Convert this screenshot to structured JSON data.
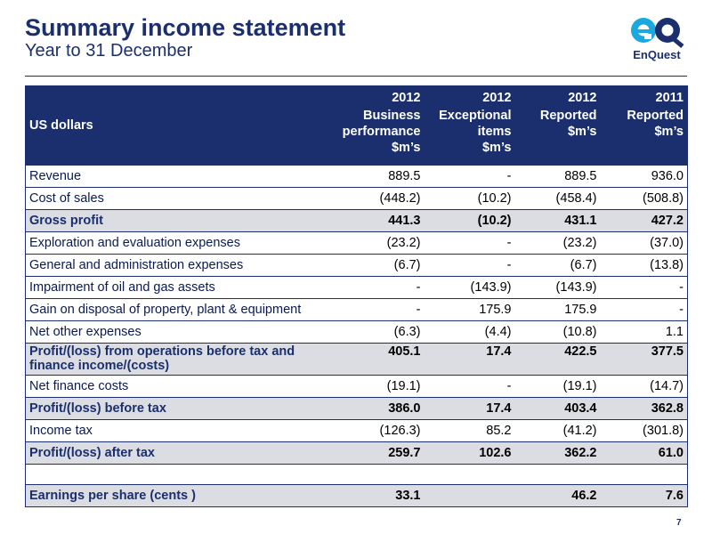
{
  "header": {
    "title": "Summary income statement",
    "subtitle": "Year to 31 December",
    "logo_text": "EnQuest"
  },
  "colors": {
    "brand_navy": "#1b2f6e",
    "logo_cyan": "#19a8e0",
    "band_grey": "#dcdde2"
  },
  "table": {
    "label_header": "US dollars",
    "columns": [
      {
        "year": "2012",
        "lines": [
          "Business",
          "performance",
          "$m’s"
        ]
      },
      {
        "year": "2012",
        "lines": [
          "Exceptional",
          "items",
          "$m’s"
        ]
      },
      {
        "year": "2012",
        "lines": [
          "Reported",
          "$m’s"
        ]
      },
      {
        "year": "2011",
        "lines": [
          "Reported",
          "$m’s"
        ]
      }
    ],
    "rows": [
      {
        "label": "Revenue",
        "values": [
          "889.5",
          "-",
          "889.5",
          "936.0"
        ],
        "style": "plain"
      },
      {
        "label": "Cost of sales",
        "values": [
          "(448.2)",
          "(10.2)",
          "(458.4)",
          "(508.8)"
        ],
        "style": "plain"
      },
      {
        "label": "Gross profit",
        "values": [
          "441.3",
          "(10.2)",
          "431.1",
          "427.2"
        ],
        "style": "bold"
      },
      {
        "label": "Exploration and evaluation expenses",
        "values": [
          "(23.2)",
          "-",
          "(23.2)",
          "(37.0)"
        ],
        "style": "plain"
      },
      {
        "label": "General and administration expenses",
        "values": [
          "(6.7)",
          "-",
          "(6.7)",
          "(13.8)"
        ],
        "style": "plain"
      },
      {
        "label": "Impairment of oil and gas assets",
        "values": [
          "-",
          "(143.9)",
          "(143.9)",
          "-"
        ],
        "style": "plain"
      },
      {
        "label": "Gain on disposal of property, plant & equipment",
        "values": [
          "-",
          "175.9",
          "175.9",
          "-"
        ],
        "style": "plain"
      },
      {
        "label": "Net other expenses",
        "values": [
          "(6.3)",
          "(4.4)",
          "(10.8)",
          "1.1"
        ],
        "style": "plain"
      },
      {
        "label": "Profit/(loss) from operations before tax and finance income/(costs)",
        "values": [
          "405.1",
          "17.4",
          "422.5",
          "377.5"
        ],
        "style": "bold tall"
      },
      {
        "label": "Net finance costs",
        "values": [
          "(19.1)",
          "-",
          "(19.1)",
          "(14.7)"
        ],
        "style": "plain"
      },
      {
        "label": "Profit/(loss) before tax",
        "values": [
          "386.0",
          "17.4",
          "403.4",
          "362.8"
        ],
        "style": "bold"
      },
      {
        "label": "Income tax",
        "values": [
          "(126.3)",
          "85.2",
          "(41.2)",
          "(301.8)"
        ],
        "style": "plain"
      },
      {
        "label": "Profit/(loss) after tax",
        "values": [
          "259.7",
          "102.6",
          "362.2",
          "61.0"
        ],
        "style": "bold"
      },
      {
        "label": "",
        "values": [
          "",
          "",
          "",
          ""
        ],
        "style": "blank"
      },
      {
        "label": "Earnings per share (cents )",
        "values": [
          "33.1",
          "",
          "46.2",
          "7.6"
        ],
        "style": "bold"
      }
    ]
  },
  "footer": {
    "page_number": "7"
  }
}
